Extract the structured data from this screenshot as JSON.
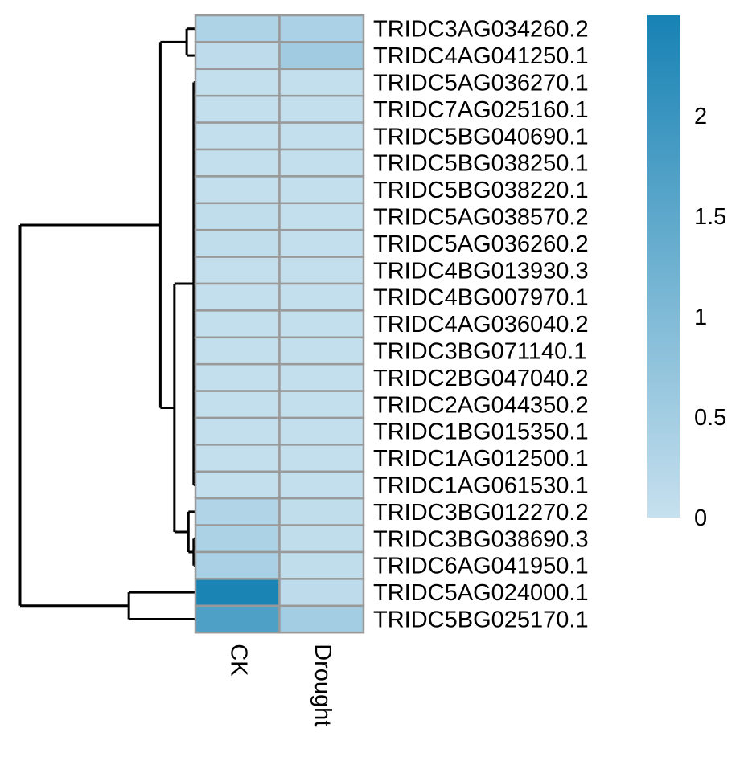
{
  "chart_data": {
    "type": "heatmap",
    "columns": [
      "CK",
      "Drought"
    ],
    "rows": [
      "TRIDC3AG034260.2",
      "TRIDC4AG041250.1",
      "TRIDC5AG036270.1",
      "TRIDC7AG025160.1",
      "TRIDC5BG040690.1",
      "TRIDC5BG038250.1",
      "TRIDC5BG038220.1",
      "TRIDC5AG038570.2",
      "TRIDC5AG036260.2",
      "TRIDC4BG013930.3",
      "TRIDC4BG007970.1",
      "TRIDC4AG036040.2",
      "TRIDC3BG071140.1",
      "TRIDC2BG047040.2",
      "TRIDC2AG044350.2",
      "TRIDC1BG015350.1",
      "TRIDC1AG012500.1",
      "TRIDC1AG061530.1",
      "TRIDC3BG012270.2",
      "TRIDC3BG038690.3",
      "TRIDC6AG041950.1",
      "TRIDC5AG024000.1",
      "TRIDC5BG025170.1"
    ],
    "values": [
      [
        0.35,
        0.4
      ],
      [
        0.12,
        0.55
      ],
      [
        0.05,
        0.05
      ],
      [
        0.05,
        0.05
      ],
      [
        0.05,
        0.05
      ],
      [
        0.05,
        0.05
      ],
      [
        0.05,
        0.05
      ],
      [
        0.08,
        0.05
      ],
      [
        0.08,
        0.05
      ],
      [
        0.05,
        0.05
      ],
      [
        0.05,
        0.05
      ],
      [
        0.05,
        0.05
      ],
      [
        0.05,
        0.05
      ],
      [
        0.05,
        0.05
      ],
      [
        0.05,
        0.05
      ],
      [
        0.05,
        0.05
      ],
      [
        0.05,
        0.05
      ],
      [
        0.05,
        0.05
      ],
      [
        0.3,
        0.08
      ],
      [
        0.38,
        0.08
      ],
      [
        0.42,
        0.08
      ],
      [
        2.45,
        0.12
      ],
      [
        1.7,
        0.5
      ]
    ],
    "color_scale": {
      "min": 0,
      "max": 2.5,
      "low_color": "#c6e0ee",
      "high_color": "#1782b4"
    },
    "legend": {
      "position": "right",
      "ticks": [
        "0",
        "0.5",
        "1",
        "1.5",
        "2"
      ],
      "tick_values": [
        0,
        0.5,
        1,
        1.5,
        2
      ]
    },
    "cell_border_color": "#999999",
    "dendrogram": {
      "side": "left",
      "merges": [
        {
          "id": "g1",
          "members": [
            0,
            1
          ],
          "height": 0.05
        },
        {
          "id": "g2",
          "members": [
            2,
            3,
            4,
            5,
            6,
            7,
            8,
            9,
            10,
            11,
            12,
            13,
            14,
            15,
            16,
            17
          ],
          "height": 0.01
        },
        {
          "id": "g3",
          "members": [
            19,
            20
          ],
          "height": 0.01
        },
        {
          "id": "g4",
          "members": [
            18,
            "g3"
          ],
          "height": 0.04
        },
        {
          "id": "g5",
          "members": [
            "g2",
            "g4"
          ],
          "height": 0.12
        },
        {
          "id": "g6",
          "members": [
            "g1",
            "g5"
          ],
          "height": 0.2
        },
        {
          "id": "g7",
          "members": [
            21,
            22
          ],
          "height": 0.38
        },
        {
          "id": "g8",
          "members": [
            "g6",
            "g7"
          ],
          "height": 1.0
        }
      ]
    }
  }
}
